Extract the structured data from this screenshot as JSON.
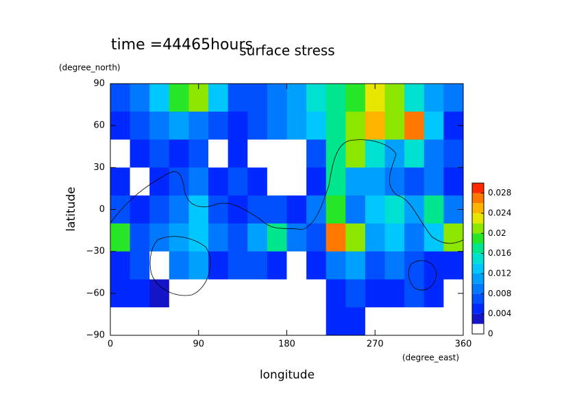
{
  "chart_data": {
    "type": "contour",
    "title": "surface stress",
    "subtitle": "time =44465hours",
    "x_label": "longitude",
    "x_unit": "(degree_east)",
    "y_label": "latitude",
    "y_unit": "(degree_north)",
    "xlim": [
      0,
      360
    ],
    "xticks": [
      0,
      90,
      180,
      270,
      360
    ],
    "ylim": [
      -90,
      90
    ],
    "yticks": [
      {
        "value": -90,
        "label": "−90"
      },
      {
        "value": -60,
        "label": "−60"
      },
      {
        "value": -30,
        "label": "−30"
      },
      0,
      30,
      60,
      90
    ],
    "x": [
      10,
      30,
      50,
      70,
      90,
      110,
      130,
      150,
      170,
      190,
      210,
      230,
      250,
      270,
      290,
      310,
      330,
      350
    ],
    "y": [
      80,
      60,
      40,
      20,
      0,
      -20,
      -40,
      -60,
      -80
    ],
    "z": [
      [
        0.006,
        0.008,
        0.012,
        0.018,
        0.02,
        0.012,
        0.006,
        0.006,
        0.008,
        0.01,
        0.014,
        0.016,
        0.018,
        0.022,
        0.02,
        0.014,
        0.01,
        0.008
      ],
      [
        0.004,
        0.006,
        0.008,
        0.01,
        0.008,
        0.006,
        0.004,
        0.006,
        0.008,
        0.01,
        0.012,
        0.016,
        0.02,
        0.024,
        0.02,
        0.026,
        0.012,
        0.004
      ],
      [
        0.001,
        0.004,
        0.006,
        0.004,
        0.006,
        0.001,
        0.004,
        0.001,
        0.001,
        0.001,
        0.006,
        0.016,
        0.02,
        0.014,
        0.01,
        0.014,
        0.008,
        0.006
      ],
      [
        0.004,
        0.001,
        0.004,
        0.006,
        0.008,
        0.004,
        0.006,
        0.004,
        0.001,
        0.001,
        0.004,
        0.016,
        0.01,
        0.01,
        0.008,
        0.006,
        0.008,
        0.004
      ],
      [
        0.006,
        0.004,
        0.006,
        0.008,
        0.012,
        0.006,
        0.004,
        0.006,
        0.006,
        0.004,
        0.008,
        0.018,
        0.008,
        0.012,
        0.014,
        0.01,
        0.016,
        0.008
      ],
      [
        0.018,
        0.006,
        0.008,
        0.01,
        0.012,
        0.008,
        0.006,
        0.01,
        0.016,
        0.008,
        0.006,
        0.026,
        0.02,
        0.01,
        0.012,
        0.008,
        0.012,
        0.02
      ],
      [
        0.004,
        0.006,
        0.001,
        0.008,
        0.01,
        0.004,
        0.006,
        0.006,
        0.004,
        0.001,
        0.004,
        0.008,
        0.01,
        0.006,
        0.008,
        0.006,
        0.004,
        0.004
      ],
      [
        0.004,
        0.004,
        0.002,
        0.001,
        0.001,
        0.001,
        0.001,
        0.001,
        0.001,
        0.001,
        0.001,
        0.004,
        0.006,
        0.004,
        0.004,
        0.006,
        0.004,
        0.001
      ],
      [
        0.001,
        0.001,
        0.001,
        0.001,
        0.001,
        0.001,
        0.001,
        0.001,
        0.001,
        0.001,
        0.001,
        0.004,
        0.004,
        0.001,
        0.001,
        0.001,
        0.001,
        0.001
      ]
    ],
    "levels": [
      0,
      0.002,
      0.004,
      0.006,
      0.008,
      0.01,
      0.012,
      0.014,
      0.016,
      0.018,
      0.02,
      0.022,
      0.024,
      0.026,
      0.028,
      0.03
    ],
    "colors": [
      "#ffffff",
      "#1414c8",
      "#0028ff",
      "#0050ff",
      "#0078ff",
      "#00a0ff",
      "#00c8ff",
      "#00e0d0",
      "#00e68c",
      "#28e628",
      "#8ce600",
      "#e6e600",
      "#ffb400",
      "#ff7800",
      "#ff2800"
    ],
    "cticks": [
      0,
      0.004,
      0.008,
      0.012,
      0.016,
      0.02,
      0.024,
      0.028
    ]
  }
}
